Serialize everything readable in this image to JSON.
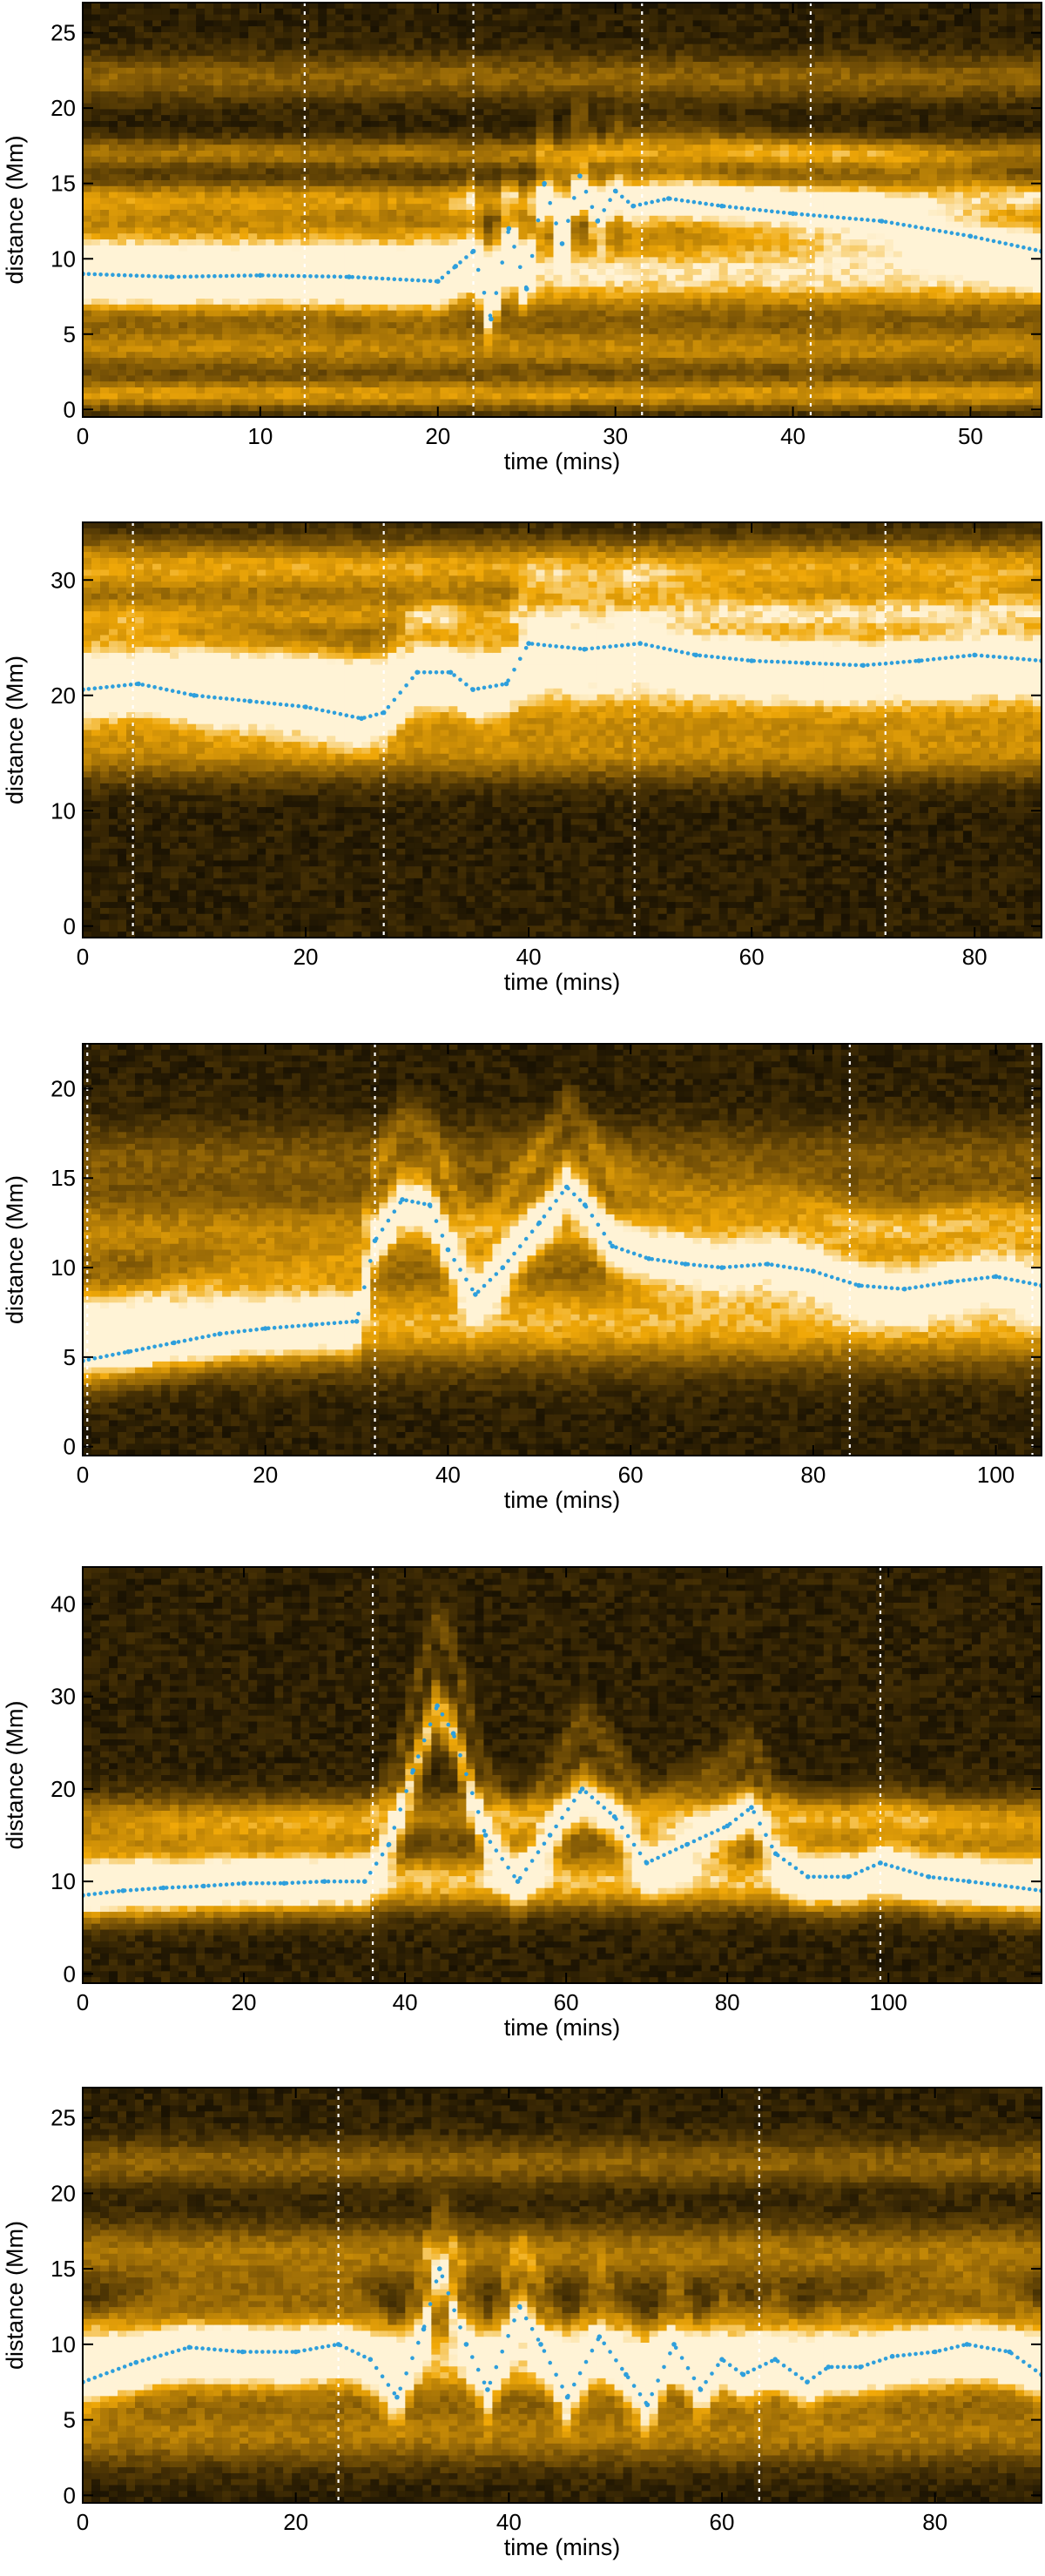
{
  "colors": {
    "dark": "#0e0a02",
    "mid": "#7a5406",
    "bright": "#f0a808",
    "white_hot": "#fff3d6",
    "trace": "#2e9fdc",
    "marker": "#ffffff",
    "axis": "#000000"
  },
  "chart_data": [
    {
      "type": "heatmap",
      "title": "",
      "xlabel": "time (mins)",
      "ylabel": "distance (Mm)",
      "xlim": [
        0,
        54
      ],
      "ylim": [
        -0.5,
        27
      ],
      "xticks": [
        0,
        10,
        20,
        30,
        40,
        50
      ],
      "yticks": [
        0,
        5,
        10,
        15,
        20,
        25
      ],
      "xtick_labels": [
        "0",
        "10",
        "20",
        "30",
        "40",
        "50"
      ],
      "ytick_labels": [
        "0",
        "5",
        "10",
        "15",
        "20",
        "25"
      ],
      "vlines": [
        12.5,
        22,
        31.5,
        41
      ],
      "bands": [
        {
          "c": 9,
          "w": 2.6,
          "a": 0.85
        },
        {
          "c": 14,
          "w": 1.2,
          "a": 0.55
        },
        {
          "c": 17,
          "w": 1.0,
          "a": 0.45
        },
        {
          "c": 4,
          "w": 1.5,
          "a": 0.5
        },
        {
          "c": 1,
          "w": 1.0,
          "a": 0.6
        },
        {
          "c": 22,
          "w": 1.5,
          "a": 0.35
        }
      ],
      "series": [
        {
          "x": [
            0,
            5,
            10,
            15,
            20,
            21,
            22,
            23,
            24,
            25,
            26,
            27,
            28,
            29,
            30,
            31,
            33,
            36,
            40,
            45,
            50,
            54
          ],
          "y": [
            9,
            8.8,
            8.9,
            8.8,
            8.5,
            9.5,
            10.5,
            6,
            12,
            8,
            15,
            11,
            15.5,
            12.5,
            14.5,
            13.5,
            14,
            13.5,
            13,
            12.5,
            11.5,
            10.5
          ]
        }
      ]
    },
    {
      "type": "heatmap",
      "title": "",
      "xlabel": "time (mins)",
      "ylabel": "distance (Mm)",
      "xlim": [
        0,
        86
      ],
      "ylim": [
        -1,
        35
      ],
      "xticks": [
        0,
        20,
        40,
        60,
        80
      ],
      "yticks": [
        0,
        10,
        20,
        30
      ],
      "xtick_labels": [
        "0",
        "20",
        "40",
        "60",
        "80"
      ],
      "ytick_labels": [
        "0",
        "10",
        "20",
        "30"
      ],
      "vlines": [
        4.5,
        27,
        49.5,
        72
      ],
      "bands": [
        {
          "c": 21,
          "w": 4,
          "a": 0.8
        },
        {
          "c": 31,
          "w": 2.5,
          "a": 0.65
        },
        {
          "c": 15,
          "w": 2.5,
          "a": 0.45
        },
        {
          "c": 27,
          "w": 1.5,
          "a": 0.45
        }
      ],
      "series": [
        {
          "x": [
            0,
            5,
            10,
            15,
            20,
            25,
            27,
            30,
            33,
            35,
            38,
            40,
            45,
            50,
            55,
            60,
            65,
            70,
            75,
            80,
            86
          ],
          "y": [
            20.5,
            21,
            20,
            19.5,
            19,
            18,
            18.5,
            22,
            22,
            20.5,
            21,
            24.5,
            24,
            24.5,
            23.5,
            23,
            22.8,
            22.6,
            23,
            23.5,
            23
          ]
        }
      ]
    },
    {
      "type": "heatmap",
      "title": "",
      "xlabel": "time (mins)",
      "ylabel": "distance (Mm)",
      "xlim": [
        0,
        105
      ],
      "ylim": [
        -0.5,
        22.5
      ],
      "xticks": [
        0,
        20,
        40,
        60,
        80,
        100
      ],
      "yticks": [
        0,
        5,
        10,
        15,
        20
      ],
      "xtick_labels": [
        "0",
        "20",
        "40",
        "60",
        "80",
        "100"
      ],
      "ytick_labels": [
        "0",
        "5",
        "10",
        "15",
        "20"
      ],
      "vlines": [
        0.5,
        32,
        84,
        104
      ],
      "bands": [
        {
          "c": 7,
          "w": 2.5,
          "a": 0.7
        },
        {
          "c": 12,
          "w": 2.0,
          "a": 0.5
        },
        {
          "c": 16,
          "w": 2.0,
          "a": 0.3
        }
      ],
      "series": [
        {
          "x": [
            0,
            5,
            10,
            15,
            20,
            25,
            30,
            32,
            35,
            38,
            40,
            43,
            46,
            50,
            53,
            55,
            58,
            62,
            66,
            70,
            75,
            80,
            85,
            90,
            95,
            100,
            105
          ],
          "y": [
            4.8,
            5.3,
            5.8,
            6.3,
            6.6,
            6.8,
            7,
            11.5,
            13.8,
            13.5,
            11,
            8.5,
            10,
            12.5,
            14.5,
            13.5,
            11.2,
            10.5,
            10.2,
            10,
            10.2,
            9.8,
            9,
            8.8,
            9.2,
            9.5,
            9
          ]
        }
      ]
    },
    {
      "type": "heatmap",
      "title": "",
      "xlabel": "time (mins)",
      "ylabel": "distance (Mm)",
      "xlim": [
        0,
        119
      ],
      "ylim": [
        -1,
        44
      ],
      "xticks": [
        0,
        20,
        40,
        60,
        80,
        100
      ],
      "yticks": [
        0,
        10,
        20,
        30,
        40
      ],
      "xtick_labels": [
        "0",
        "20",
        "40",
        "60",
        "80",
        "100"
      ],
      "ytick_labels": [
        "0",
        "10",
        "20",
        "30",
        "40"
      ],
      "vlines": [
        36,
        99
      ],
      "bands": [
        {
          "c": 10,
          "w": 3,
          "a": 0.75
        },
        {
          "c": 17,
          "w": 2.5,
          "a": 0.45
        }
      ],
      "series": [
        {
          "x": [
            0,
            5,
            10,
            15,
            20,
            25,
            30,
            35,
            38,
            41,
            44,
            46,
            50,
            54,
            58,
            62,
            66,
            70,
            75,
            80,
            83,
            86,
            90,
            95,
            99,
            105,
            110,
            119
          ],
          "y": [
            8.5,
            9,
            9.3,
            9.5,
            9.8,
            9.8,
            10,
            10,
            14,
            22,
            29,
            26,
            15,
            10,
            15,
            20,
            17,
            12,
            14,
            16,
            18,
            13,
            10.5,
            10.5,
            12,
            10.5,
            10,
            9
          ]
        }
      ]
    },
    {
      "type": "heatmap",
      "title": "",
      "xlabel": "time (mins)",
      "ylabel": "distance (Mm)",
      "xlim": [
        0,
        90
      ],
      "ylim": [
        -0.5,
        27
      ],
      "xticks": [
        0,
        20,
        40,
        60,
        80
      ],
      "yticks": [
        0,
        5,
        10,
        15,
        20,
        25
      ],
      "xtick_labels": [
        "0",
        "20",
        "40",
        "60",
        "80"
      ],
      "ytick_labels": [
        "0",
        "5",
        "10",
        "15",
        "20",
        "25"
      ],
      "vlines": [
        24,
        63.5
      ],
      "bands": [
        {
          "c": 9,
          "w": 2.5,
          "a": 0.8
        },
        {
          "c": 16,
          "w": 2.0,
          "a": 0.45
        },
        {
          "c": 22,
          "w": 1.5,
          "a": 0.35
        },
        {
          "c": 4,
          "w": 2.0,
          "a": 0.45
        }
      ],
      "series": [
        {
          "x": [
            0,
            5,
            10,
            15,
            20,
            24,
            27,
            29.5,
            32,
            33.5,
            36,
            38,
            41,
            43,
            45.5,
            48.5,
            51,
            53,
            55.5,
            58,
            60,
            62,
            65,
            68,
            70,
            73,
            76,
            80,
            83,
            87,
            90
          ],
          "y": [
            7.5,
            8.8,
            9.8,
            9.5,
            9.5,
            10,
            9,
            6.5,
            11,
            15,
            10,
            7,
            12.5,
            10,
            6.5,
            10.5,
            8,
            6,
            10,
            7,
            9,
            8,
            9,
            7.5,
            8.5,
            8.5,
            9.2,
            9.5,
            10,
            9.5,
            8
          ]
        }
      ]
    }
  ]
}
